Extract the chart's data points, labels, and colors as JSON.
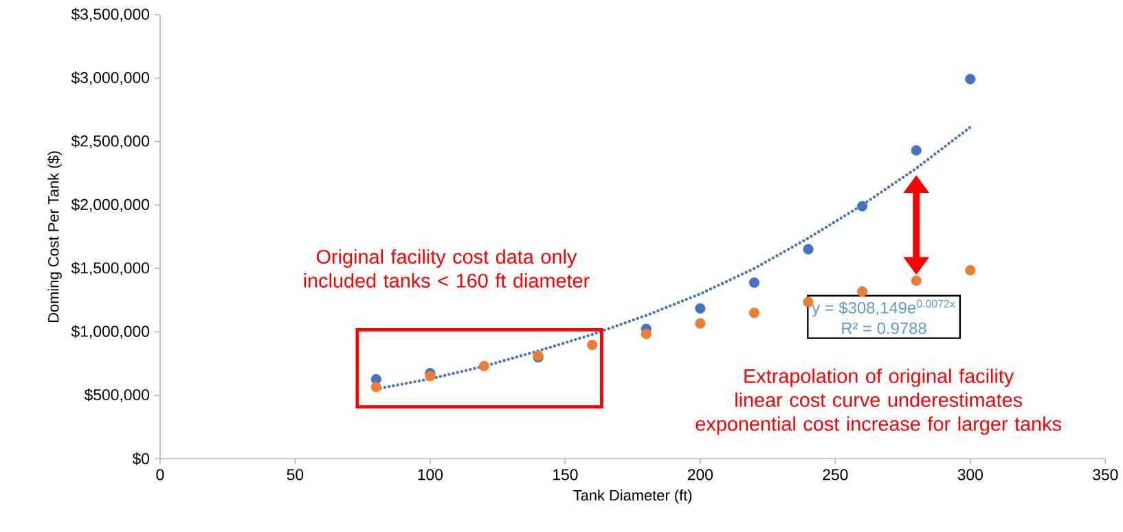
{
  "chart_data": {
    "type": "scatter",
    "xlabel": "Tank Diameter (ft)",
    "ylabel": "Doming Cost Per Tank ($)",
    "xlim": [
      0,
      350
    ],
    "xticks": [
      0,
      50,
      100,
      150,
      200,
      250,
      300,
      350
    ],
    "ylim": [
      0,
      3500000
    ],
    "yticks": [
      {
        "value": 0,
        "label": "$0"
      },
      {
        "value": 500000,
        "label": "$500,000"
      },
      {
        "value": 1000000,
        "label": "$1,000,000"
      },
      {
        "value": 1500000,
        "label": "$1,500,000"
      },
      {
        "value": 2000000,
        "label": "$2,000,000"
      },
      {
        "value": 2500000,
        "label": "$2,500,000"
      },
      {
        "value": 3000000,
        "label": "$3,000,000"
      },
      {
        "value": 3500000,
        "label": "$3,500,000"
      }
    ],
    "series": [
      {
        "color": "#4472c4",
        "marker": "circle",
        "x": [
          80,
          100,
          120,
          140,
          160,
          180,
          200,
          220,
          240,
          260,
          280,
          300
        ],
        "values": [
          627000,
          675000,
          null,
          799000,
          null,
          1024000,
          1185000,
          1389000,
          1652000,
          1991000,
          2431000,
          2993000
        ]
      },
      {
        "color": "#ed7d31",
        "marker": "circle",
        "x": [
          80,
          100,
          120,
          140,
          160,
          180,
          200,
          220,
          240,
          260,
          280,
          300
        ],
        "values": [
          565000,
          652000,
          731000,
          813000,
          897000,
          984000,
          1067000,
          1150000,
          1236000,
          1319000,
          1403000,
          1486000
        ]
      },
      {
        "type": "line",
        "color": "#4472c4",
        "line_style": "dotted",
        "marker": "none",
        "x": [
          80,
          100,
          120,
          140,
          160,
          180,
          200,
          220,
          240,
          260,
          280,
          300
        ],
        "values": [
          550000,
          630000,
          730000,
          850000,
          980000,
          1130000,
          1300000,
          1500000,
          1740000,
          2000000,
          2290000,
          2614000
        ]
      }
    ],
    "annotations": [
      "Original facility cost data only included tanks < 160 ft diameter",
      "y = $308,149e$^{0.0072x}$",
      "R² = 0.9788",
      "Extrapolation of original facility linear cost curve underestimates exponential cost increase for larger tanks"
    ]
  }
}
